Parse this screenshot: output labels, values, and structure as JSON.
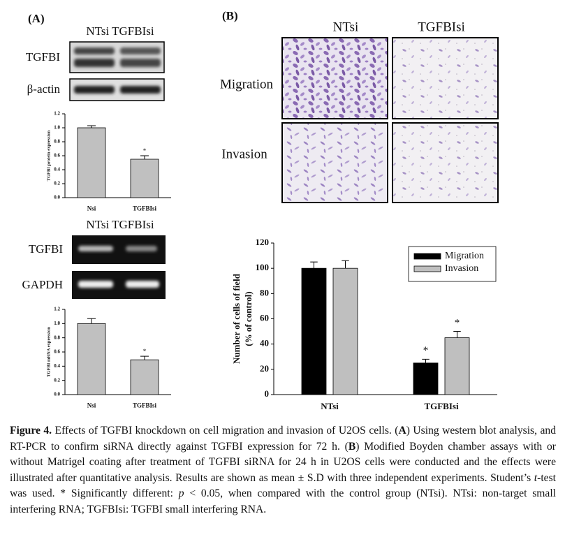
{
  "panel_a": {
    "label": "(A)",
    "blot_header": "NTsi TGFBIsi",
    "blot_rows": [
      "TGFBI",
      "β-actin"
    ],
    "pcr_header": "NTsi TGFBIsi",
    "pcr_rows": [
      "TGFBI",
      "GAPDH"
    ]
  },
  "panel_b": {
    "label": "(B)",
    "columns": [
      "NTsi",
      "TGFBIsi"
    ],
    "rows": [
      "Migration",
      "Invasion"
    ]
  },
  "chart_data": [
    {
      "type": "bar",
      "ylabel": "TGFBI protein expression",
      "categories": [
        "Nsi",
        "TGFBIsi"
      ],
      "values": [
        1.0,
        0.55
      ],
      "errors": [
        0.03,
        0.05
      ],
      "color": "#c0c0c0",
      "ylim": [
        0,
        1.2
      ],
      "yticks": [
        {
          "value": 0,
          "label": "0.0"
        },
        0.2,
        0.4,
        0.6,
        0.8,
        {
          "value": 1,
          "label": "1.0"
        },
        1.2
      ],
      "annotations": [
        {
          "text": "*",
          "category": 1
        }
      ]
    },
    {
      "type": "bar",
      "ylabel": "TGFBI mRNA expression",
      "categories": [
        "Nsi",
        "TGFBIsi"
      ],
      "values": [
        1.0,
        0.49
      ],
      "errors": [
        0.07,
        0.05
      ],
      "color": "#c0c0c0",
      "ylim": [
        0,
        1.2
      ],
      "yticks": [
        {
          "value": 0,
          "label": "0.0"
        },
        0.2,
        0.4,
        0.6,
        0.8,
        {
          "value": 1,
          "label": "1.0"
        },
        1.2
      ],
      "annotations": [
        {
          "text": "*",
          "category": 1
        }
      ]
    },
    {
      "type": "bar",
      "ylabel": [
        "Number of cells of field",
        "(% of control)"
      ],
      "categories": [
        "NTsi",
        "TGFBIsi"
      ],
      "series": [
        {
          "name": "Migration",
          "color": "#000000",
          "values": [
            100,
            25
          ],
          "errors": [
            5,
            3
          ]
        },
        {
          "name": "Invasion",
          "color": "#bfbfbf",
          "values": [
            100,
            45
          ],
          "errors": [
            6,
            5
          ]
        }
      ],
      "ylim": [
        0,
        120
      ],
      "yticks": [
        0,
        20,
        40,
        60,
        80,
        100,
        120
      ],
      "legend": "upper right",
      "annotations": [
        {
          "text": "*",
          "category": 1,
          "series": 0
        },
        {
          "text": "*",
          "category": 1,
          "series": 1
        }
      ]
    }
  ],
  "caption": {
    "label": "Figure 4.",
    "parts": [
      " Effects of TGFBI knockdown on cell migration and invasion of U2OS cells. (",
      "A",
      ") Using western blot analysis, and RT-PCR to confirm siRNA directly against TGFBI expression for 72 h. (",
      "B",
      ") Modified Boyden chamber assays with or without Matrigel coating after treatment of TGFBI siRNA for 24 h in U2OS cells were conducted and the effects were illustrated after quantitative analysis. Results are shown as mean ± S.D with three independent experiments. Student’s ",
      "t",
      "-test was used. * Significantly different: ",
      "p",
      " < 0.05, when compared with the control group (NTsi). NTsi: non-target small interfering RNA; TGFBIsi: TGFBI small interfering RNA."
    ]
  }
}
